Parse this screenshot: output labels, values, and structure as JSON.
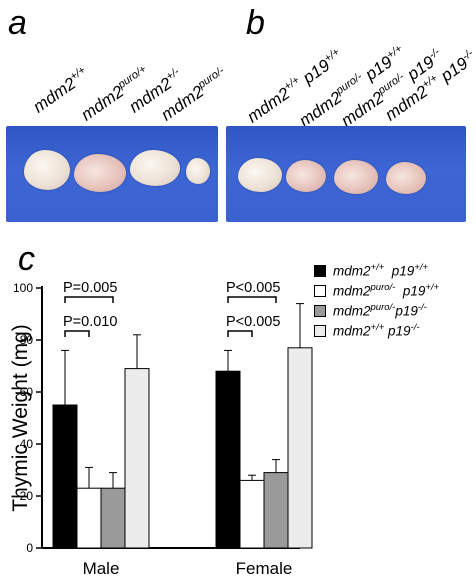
{
  "panels": {
    "a": "a",
    "b": "b",
    "c": "c"
  },
  "panel_a": {
    "genotypes": [
      {
        "base": "mdm2",
        "sup": "+/+",
        "rest": ""
      },
      {
        "base": "mdm2",
        "sup": "puro/+",
        "rest": ""
      },
      {
        "base": "mdm2",
        "sup": "+/-",
        "rest": ""
      },
      {
        "base": "mdm2",
        "sup": "puro/-",
        "rest": ""
      }
    ]
  },
  "panel_b": {
    "genotypes": [
      {
        "base": "mdm2",
        "sup": "+/+",
        "base2": " p19",
        "sup2": "+/+"
      },
      {
        "base": "mdm2",
        "sup": "puro/-",
        "base2": " p19",
        "sup2": "+/+"
      },
      {
        "base": "mdm2",
        "sup": "puro/-",
        "base2": " p19",
        "sup2": "-/-"
      },
      {
        "base": "mdm2",
        "sup": "+/+",
        "base2": " p19",
        "sup2": "-/-"
      }
    ]
  },
  "legend": [
    {
      "base": "mdm2",
      "sup": "+/+",
      "base2": "  p19",
      "sup2": "+/+",
      "color": "#000000"
    },
    {
      "base": "mdm2",
      "sup": "puro/-",
      "base2": "  p19",
      "sup2": "+/+",
      "color": "#ffffff"
    },
    {
      "base": "mdm2",
      "sup": "puro/-",
      "base2": "p19",
      "sup2": "-/-",
      "color": "#9a9a9a"
    },
    {
      "base": "mdm2",
      "sup": "+/+",
      "base2": " p19",
      "sup2": "-/-",
      "color": "#ececec"
    }
  ],
  "chart_data": {
    "type": "bar",
    "ylabel": "Thymic Weight (mg)",
    "ylim": [
      0,
      100
    ],
    "yticks": [
      0,
      20,
      40,
      60,
      80,
      100
    ],
    "categories": [
      "Male",
      "Female"
    ],
    "series": [
      {
        "name": "mdm2+/+ p19+/+",
        "color": "#000000",
        "values": [
          55,
          68
        ],
        "errors": [
          21,
          8
        ]
      },
      {
        "name": "mdm2puro/- p19+/+",
        "color": "#ffffff",
        "values": [
          23,
          26
        ],
        "errors": [
          8,
          2
        ]
      },
      {
        "name": "mdm2puro/- p19-/-",
        "color": "#9a9a9a",
        "values": [
          23,
          29
        ],
        "errors": [
          6,
          5
        ]
      },
      {
        "name": "mdm2+/+ p19-/-",
        "color": "#ececec",
        "values": [
          69,
          77
        ],
        "errors": [
          13,
          17
        ]
      }
    ],
    "annotations": [
      {
        "group": "Male",
        "text": "P=0.005",
        "from_series": 0,
        "to_series": 2
      },
      {
        "group": "Male",
        "text": "P=0.010",
        "from_series": 0,
        "to_series": 1
      },
      {
        "group": "Female",
        "text": "P<0.005",
        "from_series": 0,
        "to_series": 2
      },
      {
        "group": "Female",
        "text": "P<0.005",
        "from_series": 0,
        "to_series": 1
      }
    ]
  }
}
